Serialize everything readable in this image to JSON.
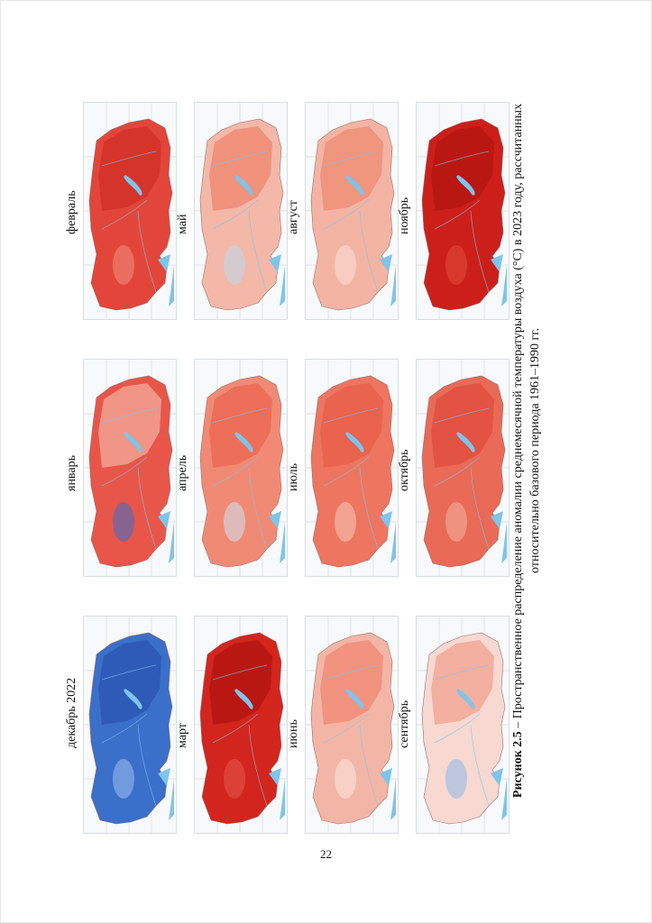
{
  "figure": {
    "maps": [
      {
        "label": "декабрь 2022",
        "fill": "#3a6fca",
        "fill2": "#2c58b4",
        "accent": "#9fc0ee"
      },
      {
        "label": "март",
        "fill": "#d2251d",
        "fill2": "#b51611",
        "accent": "#e35a4e"
      },
      {
        "label": "июнь",
        "fill": "#f3b6a6",
        "fill2": "#f08d77",
        "accent": "#fde6df"
      },
      {
        "label": "сентябрь",
        "fill": "#f7d9d2",
        "fill2": "#f2a796",
        "accent": "#8fb6e8"
      },
      {
        "label": "январь",
        "fill": "#e8564a",
        "fill2": "#f2a190",
        "accent": "#3a6fca"
      },
      {
        "label": "апрель",
        "fill": "#f18a74",
        "fill2": "#ec6a55",
        "accent": "#cfe1f5"
      },
      {
        "label": "июль",
        "fill": "#ee7560",
        "fill2": "#e8604b",
        "accent": "#f7c8bb"
      },
      {
        "label": "октябрь",
        "fill": "#e96a56",
        "fill2": "#e14f3f",
        "accent": "#f4b3a3"
      },
      {
        "label": "февраль",
        "fill": "#e2463a",
        "fill2": "#d23128",
        "accent": "#f08f7b"
      },
      {
        "label": "май",
        "fill": "#f3b8a8",
        "fill2": "#ee8b74",
        "accent": "#bcd8f1"
      },
      {
        "label": "август",
        "fill": "#f4b4a3",
        "fill2": "#ef8f78",
        "accent": "#fbe0d8"
      },
      {
        "label": "ноябрь",
        "fill": "#cc1f1a",
        "fill2": "#b51611",
        "accent": "#e14a3c"
      }
    ],
    "water_color": "#7fc4ea",
    "caption_bold": "Рисунок 2.5",
    "caption_text": " – Пространственное распределение аномалии среднемесячной температуры воздуха (°С) в 2023 году, рассчитанных относительно базового периода 1961–1990 гг."
  },
  "page_number": "22"
}
